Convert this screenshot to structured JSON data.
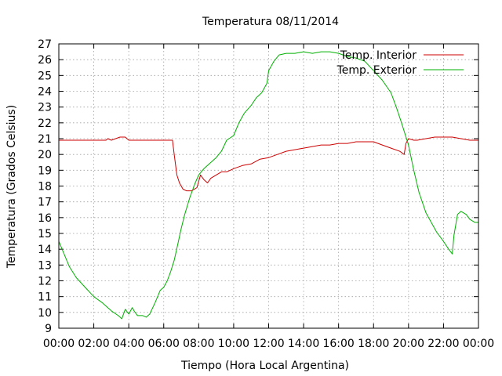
{
  "chart_data": {
    "type": "line",
    "title": "Temperatura 08/11/2014",
    "xlabel": "Tiempo (Hora Local Argentina)",
    "ylabel": "Temperatura (Grados Celsius)",
    "xlim": [
      0,
      24
    ],
    "ylim": [
      9,
      27
    ],
    "x_ticks": [
      "00:00",
      "02:00",
      "04:00",
      "06:00",
      "08:00",
      "10:00",
      "12:00",
      "14:00",
      "16:00",
      "18:00",
      "20:00",
      "22:00",
      "00:00"
    ],
    "y_ticks": [
      9,
      10,
      11,
      12,
      13,
      14,
      15,
      16,
      17,
      18,
      19,
      20,
      21,
      22,
      23,
      24,
      25,
      26,
      27
    ],
    "grid": true,
    "legend_position": "top-right",
    "series": [
      {
        "name": "Temp. Interior",
        "color": "#cc0000",
        "x": [
          0,
          1,
          2,
          2.7,
          2.8,
          3,
          3.5,
          3.8,
          4,
          5,
          6,
          6.5,
          6.6,
          6.75,
          6.9,
          7.1,
          7.3,
          7.6,
          7.9,
          8.1,
          8.3,
          8.5,
          8.7,
          9,
          9.3,
          9.6,
          10,
          10.5,
          11,
          11.5,
          12,
          12.5,
          13,
          13.5,
          14,
          14.5,
          15,
          15.5,
          16,
          16.5,
          17,
          17.5,
          18,
          18.5,
          19,
          19.5,
          19.75,
          19.85,
          20,
          20.3,
          20.5,
          21,
          21.5,
          22,
          22.5,
          23,
          23.5,
          24
        ],
        "values": [
          20.9,
          20.9,
          20.9,
          20.9,
          21.0,
          20.9,
          21.1,
          21.1,
          20.9,
          20.9,
          20.9,
          20.9,
          20.0,
          18.7,
          18.2,
          17.8,
          17.7,
          17.7,
          17.9,
          18.7,
          18.4,
          18.2,
          18.5,
          18.7,
          18.9,
          18.9,
          19.1,
          19.3,
          19.4,
          19.7,
          19.8,
          20.0,
          20.2,
          20.3,
          20.4,
          20.5,
          20.6,
          20.6,
          20.7,
          20.7,
          20.8,
          20.8,
          20.8,
          20.6,
          20.4,
          20.2,
          20.0,
          20.7,
          21.0,
          20.9,
          20.9,
          21.0,
          21.1,
          21.1,
          21.1,
          21.0,
          20.9,
          20.9
        ]
      },
      {
        "name": "Temp. Exterior",
        "color": "#00b000",
        "x": [
          0,
          0.3,
          0.6,
          1,
          1.5,
          2,
          2.5,
          3,
          3.4,
          3.6,
          3.8,
          4,
          4.2,
          4.3,
          4.5,
          4.8,
          5,
          5.2,
          5.5,
          5.8,
          6,
          6.2,
          6.4,
          6.6,
          6.8,
          7,
          7.2,
          7.5,
          7.8,
          8,
          8.3,
          8.6,
          9,
          9.3,
          9.6,
          10,
          10.3,
          10.6,
          11,
          11.3,
          11.6,
          11.9,
          12,
          12.3,
          12.6,
          13,
          13.5,
          14,
          14.5,
          15,
          15.5,
          16,
          16.5,
          17,
          17.5,
          18,
          18.5,
          19,
          19.3,
          19.6,
          20,
          20.3,
          20.6,
          21,
          21.3,
          21.6,
          22,
          22.3,
          22.5,
          22.6,
          22.8,
          23,
          23.3,
          23.5,
          23.8,
          24
        ],
        "values": [
          14.5,
          13.7,
          12.9,
          12.2,
          11.6,
          11.0,
          10.6,
          10.1,
          9.8,
          9.6,
          10.2,
          9.9,
          10.3,
          10.1,
          9.8,
          9.8,
          9.7,
          9.9,
          10.6,
          11.4,
          11.6,
          12.0,
          12.6,
          13.3,
          14.3,
          15.3,
          16.2,
          17.3,
          18.2,
          18.7,
          19.1,
          19.4,
          19.8,
          20.2,
          20.9,
          21.2,
          22.0,
          22.6,
          23.1,
          23.6,
          23.9,
          24.5,
          25.3,
          25.9,
          26.3,
          26.4,
          26.4,
          26.5,
          26.4,
          26.5,
          26.5,
          26.4,
          26.2,
          26.1,
          25.9,
          25.3,
          24.7,
          23.9,
          23.0,
          22.0,
          20.6,
          19.0,
          17.6,
          16.3,
          15.7,
          15.1,
          14.5,
          14.0,
          13.7,
          14.9,
          16.2,
          16.4,
          16.2,
          15.9,
          15.7,
          15.7
        ]
      }
    ]
  }
}
